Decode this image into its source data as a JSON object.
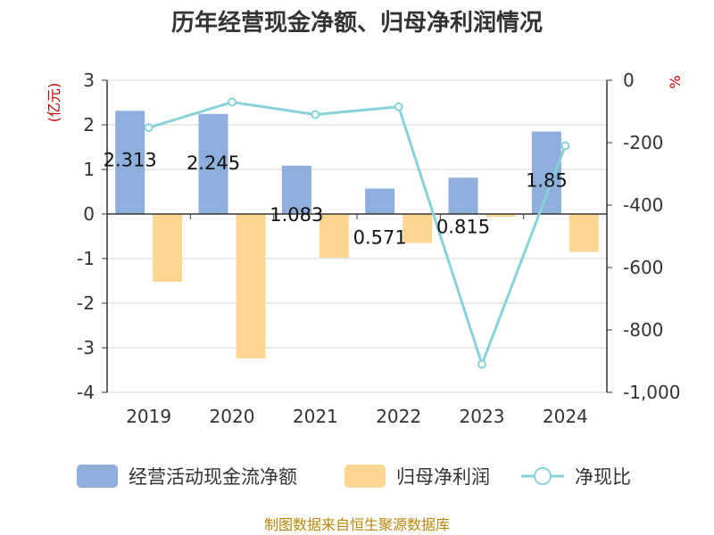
{
  "chart_data": {
    "type": "bar+line",
    "title": "历年经营现金净额、归母净利润情况",
    "categories": [
      "2019",
      "2020",
      "2021",
      "2022",
      "2023",
      "2024"
    ],
    "series": [
      {
        "name": "经营活动现金流净额",
        "type": "bar",
        "axis": "left",
        "color": "#8eaedb",
        "values": [
          2.313,
          2.245,
          1.083,
          0.571,
          0.815,
          1.85
        ]
      },
      {
        "name": "归母净利润",
        "type": "bar",
        "axis": "left",
        "color": "#fdd692",
        "values": [
          -1.52,
          -3.24,
          -0.98,
          -0.65,
          -0.06,
          -0.85
        ]
      },
      {
        "name": "净现比",
        "type": "line",
        "axis": "right",
        "color": "#87d1d8",
        "values": [
          -152,
          -70,
          -110,
          -85,
          -910,
          -210
        ]
      }
    ],
    "bar_data_labels": [
      "2.313",
      "2.245",
      "1.083",
      "0.571",
      "0.815",
      "1.85"
    ],
    "left_axis": {
      "label": "(亿元)",
      "ylim": [
        -4,
        3
      ],
      "ticks": [
        3,
        2,
        1,
        0,
        -1,
        -2,
        -3,
        -4
      ],
      "tick_labels": [
        "3",
        "2",
        "1",
        "0",
        "-1",
        "-2",
        "-3",
        "-4"
      ]
    },
    "right_axis": {
      "label": "%",
      "ylim": [
        -1000,
        0
      ],
      "ticks": [
        0,
        -200,
        -400,
        -600,
        -800,
        -1000
      ],
      "tick_labels": [
        "0",
        "-200",
        "-400",
        "-600",
        "-800",
        "-1,000"
      ]
    },
    "grid": true,
    "legend_position": "bottom",
    "source": "制图数据来自恒生聚源数据库"
  }
}
